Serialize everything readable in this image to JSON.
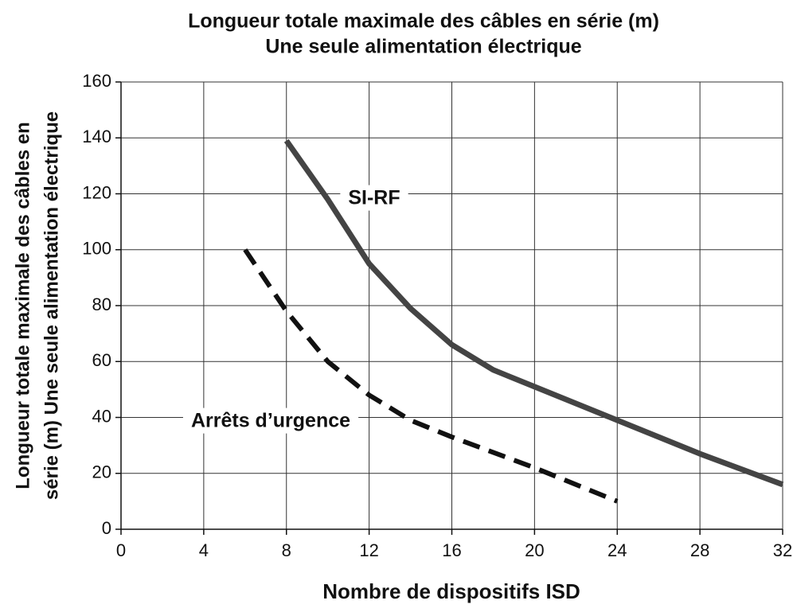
{
  "chart_data": {
    "type": "line",
    "title": [
      "Longueur totale maximale des câbles en série (m)",
      "Une seule alimentation électrique"
    ],
    "xlabel": "Nombre de dispositifs ISD",
    "ylabel": [
      "Longueur totale maximale des câbles en",
      "série (m) Une seule alimentation électrique"
    ],
    "xlim": [
      0,
      32
    ],
    "xticks": [
      0,
      4,
      8,
      12,
      16,
      20,
      24,
      28,
      32
    ],
    "ylim": [
      0,
      160
    ],
    "yticks": [
      0,
      20,
      40,
      60,
      80,
      100,
      120,
      140,
      160
    ],
    "grid": true,
    "series": [
      {
        "name": "SI-RF",
        "color": "#444444",
        "dash": false,
        "x": [
          8,
          10,
          12,
          14,
          16,
          18,
          20,
          24,
          28,
          32
        ],
        "values": [
          139,
          118,
          95,
          79,
          66,
          57,
          51,
          39,
          27,
          16
        ]
      },
      {
        "name": "Arrêts d’urgence",
        "color": "#111111",
        "dash": true,
        "x": [
          6,
          8,
          10,
          12,
          14,
          16,
          20,
          24
        ],
        "values": [
          100,
          78,
          60,
          48,
          39,
          33,
          22,
          10
        ]
      }
    ]
  }
}
